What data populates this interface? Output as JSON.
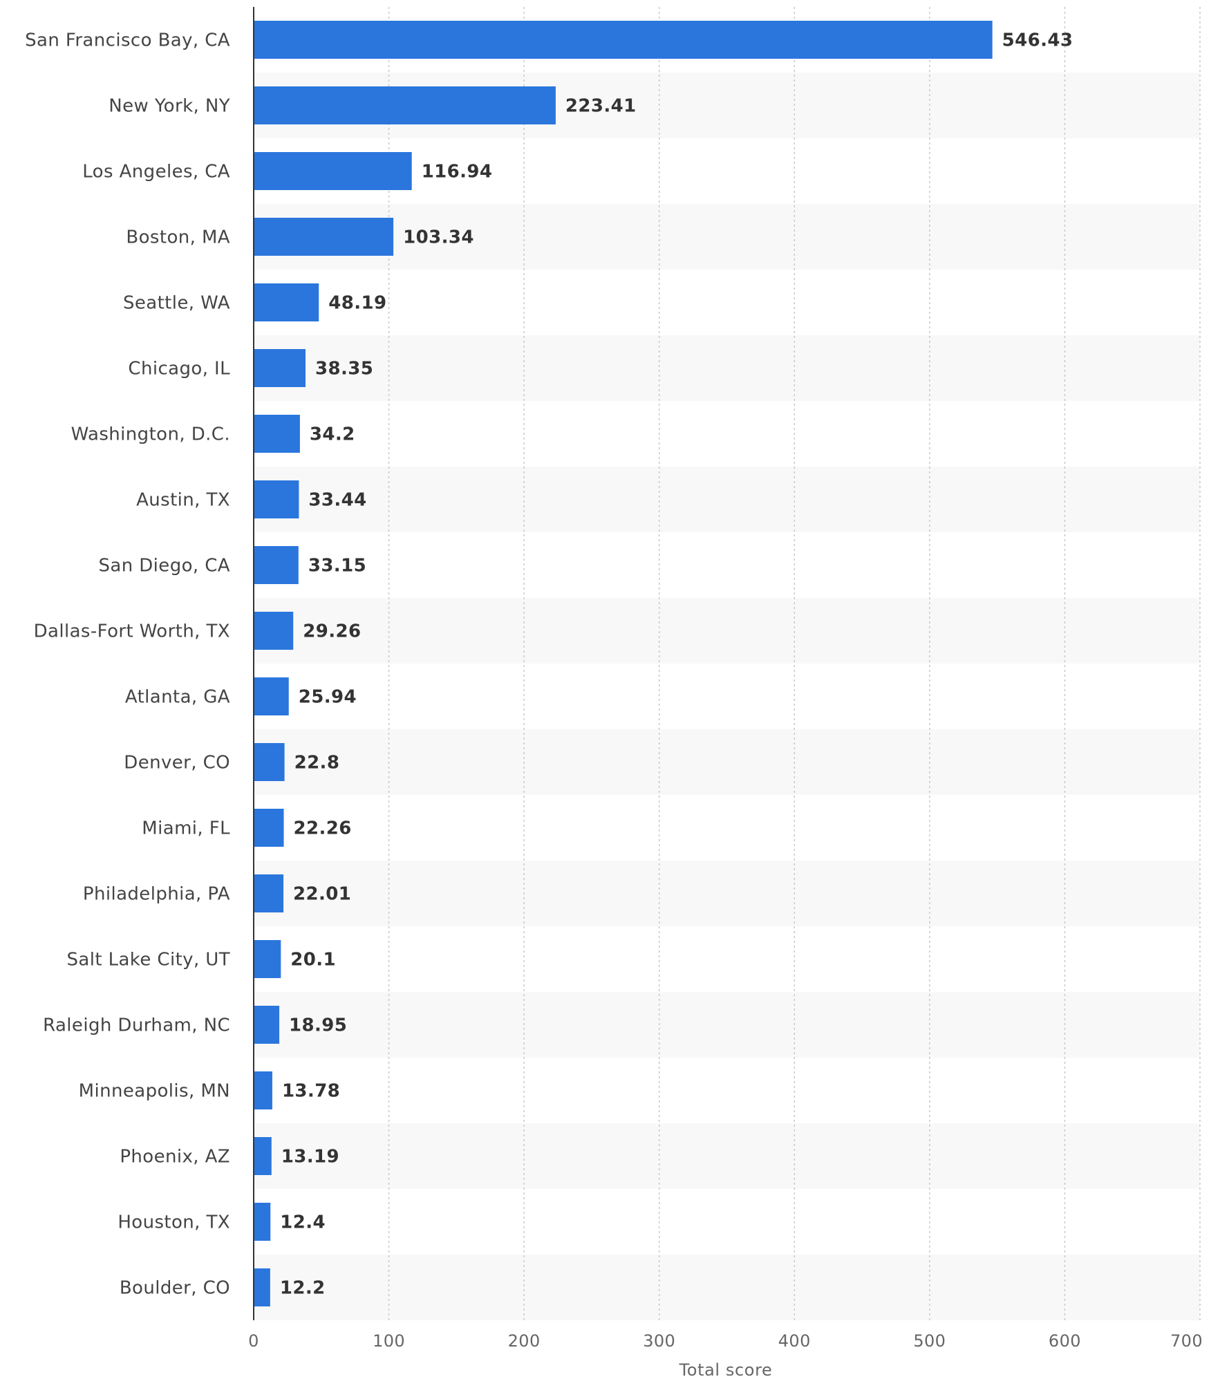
{
  "chart_data": {
    "type": "bar",
    "orientation": "horizontal",
    "title": "",
    "xlabel": "Total score",
    "ylabel": "",
    "xlim": [
      0,
      700
    ],
    "x_ticks": [
      0,
      100,
      200,
      300,
      400,
      500,
      600,
      700
    ],
    "grid": true,
    "bar_color": "#2a76dd",
    "band_color": "#f8f8f8",
    "categories": [
      "San Francisco Bay, CA",
      "New York, NY",
      "Los Angeles, CA",
      "Boston, MA",
      "Seattle, WA",
      "Chicago, IL",
      "Washington, D.C.",
      "Austin, TX",
      "San Diego, CA",
      "Dallas-Fort Worth, TX",
      "Atlanta, GA",
      "Denver, CO",
      "Miami, FL",
      "Philadelphia, PA",
      "Salt Lake City, UT",
      "Raleigh Durham, NC",
      "Minneapolis, MN",
      "Phoenix, AZ",
      "Houston, TX",
      "Boulder, CO"
    ],
    "values": [
      546.43,
      223.41,
      116.94,
      103.34,
      48.19,
      38.35,
      34.2,
      33.44,
      33.15,
      29.26,
      25.94,
      22.8,
      22.26,
      22.01,
      20.1,
      18.95,
      13.78,
      13.19,
      12.4,
      12.2
    ],
    "value_labels": [
      "546.43",
      "223.41",
      "116.94",
      "103.34",
      "48.19",
      "38.35",
      "34.2",
      "33.44",
      "33.15",
      "29.26",
      "25.94",
      "22.8",
      "22.26",
      "22.01",
      "20.1",
      "18.95",
      "13.78",
      "13.19",
      "12.4",
      "12.2"
    ]
  }
}
